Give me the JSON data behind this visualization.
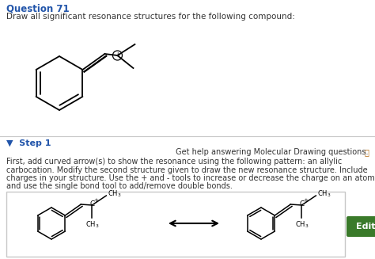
{
  "bg_color": "#f0ede8",
  "top_bg": "#ffffff",
  "bot_bg": "#ffffff",
  "title_text": "Question 71",
  "title_color": "#2255aa",
  "subtitle_text": "Draw all significant resonance structures for the following compound:",
  "step_text": "▼  Step 1",
  "step_color": "#2255aa",
  "help_icon": "ⓘ",
  "help_text": " Get help answering Molecular Drawing questions.",
  "body_lines": [
    "First, add curved arrow(s) to show the resonance using the following pattern: an allylic",
    "carbocation. Modify the second structure given to draw the new resonance structure. Include",
    "charges in your structure. Use the + and - tools to increase or decrease the charge on an atom,",
    "and use the single bond tool to add/remove double bonds."
  ],
  "box_bg": "#ffffff",
  "box_border": "#c8c8c8",
  "edit_btn_color": "#3a7a2a",
  "edit_btn_text": "Edit",
  "divider_color": "#c8c8c8",
  "text_color": "#333333"
}
